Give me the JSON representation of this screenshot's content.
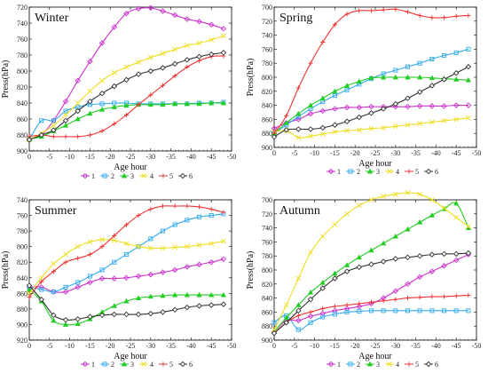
{
  "series_styles": [
    {
      "name": "1",
      "color": "#cc33cc",
      "marker": "diamond"
    },
    {
      "name": "2",
      "color": "#33aaee",
      "marker": "square"
    },
    {
      "name": "3",
      "color": "#22cc22",
      "marker": "triangle"
    },
    {
      "name": "4",
      "color": "#eedd22",
      "marker": "x"
    },
    {
      "name": "5",
      "color": "#ee3333",
      "marker": "plus"
    },
    {
      "name": "6",
      "color": "#333333",
      "marker": "diamond-open"
    }
  ],
  "chart_data": [
    {
      "type": "line",
      "title": "Winter",
      "xlabel": "Age hour",
      "ylabel": "Press(hPa)",
      "xlim": [
        0,
        -50
      ],
      "ylim": [
        900,
        720
      ],
      "xticks": [
        0,
        -5,
        -10,
        -15,
        -20,
        -25,
        -30,
        -35,
        -40,
        -45,
        -50
      ],
      "xtick_labels": [
        "0",
        "-5",
        "-10",
        "-15",
        "-20",
        "-25",
        "-30",
        "-35",
        "-40",
        "-45",
        "-50"
      ],
      "yticks": [
        720,
        740,
        760,
        780,
        800,
        820,
        840,
        860,
        880,
        900
      ],
      "ytick_labels": [
        "720",
        "740",
        "760",
        "780",
        "800",
        "820",
        "840",
        "860",
        "880",
        "900"
      ],
      "legend": "bottom",
      "grid": false,
      "x": [
        0,
        -3,
        -6,
        -9,
        -12,
        -15,
        -18,
        -21,
        -24,
        -27,
        -30,
        -33,
        -36,
        -39,
        -42,
        -45,
        -48
      ],
      "series": [
        {
          "name": "1",
          "values": [
            885,
            880,
            862,
            838,
            812,
            788,
            765,
            745,
            728,
            722,
            721,
            725,
            730,
            735,
            738,
            742,
            747
          ]
        },
        {
          "name": "2",
          "values": [
            886,
            862,
            862,
            850,
            845,
            842,
            841,
            840,
            840,
            841,
            841,
            841,
            841,
            841,
            840,
            840,
            839
          ]
        },
        {
          "name": "3",
          "values": [
            885,
            882,
            875,
            868,
            860,
            853,
            848,
            845,
            843,
            842,
            842,
            842,
            841,
            841,
            841,
            840,
            840
          ]
        },
        {
          "name": "4",
          "values": [
            886,
            878,
            868,
            855,
            840,
            825,
            812,
            802,
            795,
            789,
            783,
            778,
            773,
            768,
            765,
            761,
            756
          ]
        },
        {
          "name": "5",
          "values": [
            882,
            880,
            882,
            882,
            882,
            880,
            875,
            866,
            855,
            842,
            830,
            818,
            806,
            795,
            787,
            782,
            781
          ]
        },
        {
          "name": "6",
          "values": [
            886,
            880,
            874,
            862,
            850,
            838,
            828,
            819,
            811,
            804,
            800,
            796,
            791,
            786,
            782,
            779,
            777
          ]
        }
      ]
    },
    {
      "type": "line",
      "title": "Spring",
      "xlabel": "Age hour",
      "ylabel": "Press(hPa)",
      "xlim": [
        0,
        -50
      ],
      "ylim": [
        900,
        700
      ],
      "xticks": [
        0,
        -5,
        -10,
        -15,
        -20,
        -25,
        -30,
        -35,
        -40,
        -45,
        -50
      ],
      "xtick_labels": [
        "0",
        "-5",
        "-10",
        "-15",
        "-20",
        "-25",
        "-30",
        "-35",
        "-40",
        "-45",
        "-50"
      ],
      "yticks": [
        700,
        720,
        740,
        760,
        780,
        800,
        820,
        840,
        860,
        880,
        900
      ],
      "ytick_labels": [
        "700",
        "720",
        "740",
        "760",
        "780",
        "800",
        "820",
        "840",
        "860",
        "880",
        "900"
      ],
      "legend": "bottom",
      "grid": false,
      "x": [
        0,
        -3,
        -6,
        -9,
        -12,
        -15,
        -18,
        -21,
        -24,
        -27,
        -30,
        -33,
        -36,
        -39,
        -42,
        -45,
        -48
      ],
      "series": [
        {
          "name": "1",
          "values": [
            873,
            865,
            860,
            852,
            848,
            845,
            843,
            843,
            842,
            842,
            842,
            842,
            841,
            841,
            841,
            840,
            840
          ]
        },
        {
          "name": "2",
          "values": [
            880,
            868,
            856,
            845,
            835,
            826,
            818,
            810,
            802,
            795,
            790,
            785,
            780,
            774,
            769,
            765,
            760
          ]
        },
        {
          "name": "3",
          "values": [
            880,
            865,
            852,
            840,
            830,
            820,
            812,
            806,
            801,
            800,
            800,
            800,
            800,
            801,
            802,
            803,
            804
          ]
        },
        {
          "name": "4",
          "values": [
            878,
            876,
            886,
            884,
            881,
            878,
            876,
            875,
            873,
            872,
            870,
            868,
            866,
            864,
            862,
            860,
            858
          ]
        },
        {
          "name": "5",
          "values": [
            880,
            855,
            815,
            780,
            750,
            725,
            710,
            705,
            705,
            704,
            703,
            707,
            712,
            715,
            715,
            713,
            712
          ]
        },
        {
          "name": "6",
          "values": [
            885,
            875,
            874,
            874,
            872,
            868,
            863,
            857,
            851,
            845,
            838,
            830,
            821,
            812,
            803,
            794,
            785
          ]
        }
      ]
    },
    {
      "type": "line",
      "title": "Summer",
      "xlabel": "Age hour",
      "ylabel": "Press(hPa)",
      "xlim": [
        0,
        -50
      ],
      "ylim": [
        920,
        740
      ],
      "xticks": [
        0,
        -5,
        -10,
        -15,
        -20,
        -25,
        -30,
        -35,
        -40,
        -45,
        -50
      ],
      "xtick_labels": [
        "0",
        "-5",
        "-10",
        "-15",
        "-20",
        "-25",
        "-30",
        "-35",
        "-40",
        "-45",
        "-50"
      ],
      "yticks": [
        740,
        760,
        780,
        800,
        820,
        840,
        860,
        880,
        900,
        920
      ],
      "ytick_labels": [
        "740",
        "760",
        "780",
        "800",
        "820",
        "840",
        "860",
        "880",
        "900",
        "920"
      ],
      "legend": "bottom",
      "grid": false,
      "x": [
        0,
        -3,
        -6,
        -9,
        -12,
        -15,
        -18,
        -21,
        -24,
        -27,
        -30,
        -33,
        -36,
        -39,
        -42,
        -45,
        -48
      ],
      "series": [
        {
          "name": "1",
          "values": [
            852,
            852,
            858,
            858,
            852,
            846,
            841,
            841,
            840,
            838,
            836,
            833,
            830,
            826,
            823,
            820,
            816
          ]
        },
        {
          "name": "2",
          "values": [
            852,
            855,
            858,
            852,
            846,
            838,
            830,
            820,
            810,
            800,
            790,
            780,
            772,
            766,
            762,
            760,
            758
          ]
        },
        {
          "name": "3",
          "values": [
            855,
            870,
            895,
            900,
            899,
            893,
            884,
            876,
            870,
            866,
            864,
            863,
            862,
            862,
            862,
            862,
            862
          ]
        },
        {
          "name": "4",
          "values": [
            860,
            840,
            822,
            810,
            800,
            794,
            791,
            792,
            796,
            800,
            802,
            802,
            801,
            800,
            798,
            796,
            793
          ]
        },
        {
          "name": "5",
          "values": [
            865,
            845,
            832,
            820,
            815,
            810,
            800,
            786,
            772,
            760,
            752,
            748,
            748,
            748,
            749,
            752,
            756
          ]
        },
        {
          "name": "6",
          "values": [
            850,
            868,
            888,
            894,
            893,
            890,
            888,
            887,
            887,
            887,
            886,
            884,
            881,
            878,
            876,
            875,
            874
          ]
        }
      ]
    },
    {
      "type": "line",
      "title": "Autumn",
      "xlabel": "Age hour",
      "ylabel": "Press(hPa)",
      "xlim": [
        0,
        -50
      ],
      "ylim": [
        900,
        700
      ],
      "xticks": [
        0,
        -5,
        -10,
        -15,
        -20,
        -25,
        -30,
        -35,
        -40,
        -45,
        -50
      ],
      "xtick_labels": [
        "0",
        "-5",
        "-10",
        "-15",
        "-20",
        "-25",
        "-30",
        "-35",
        "-40",
        "-45",
        "-50"
      ],
      "yticks": [
        700,
        720,
        740,
        760,
        780,
        800,
        820,
        840,
        860,
        880,
        900
      ],
      "ytick_labels": [
        "700",
        "720",
        "740",
        "760",
        "780",
        "800",
        "820",
        "840",
        "860",
        "880",
        "900"
      ],
      "legend": "bottom",
      "grid": false,
      "x": [
        0,
        -3,
        -6,
        -9,
        -12,
        -15,
        -18,
        -21,
        -24,
        -27,
        -30,
        -33,
        -36,
        -39,
        -42,
        -45,
        -48
      ],
      "series": [
        {
          "name": "1",
          "values": [
            888,
            872,
            872,
            866,
            862,
            858,
            855,
            852,
            848,
            840,
            830,
            820,
            810,
            802,
            794,
            786,
            778
          ]
        },
        {
          "name": "2",
          "values": [
            875,
            865,
            885,
            875,
            867,
            863,
            860,
            859,
            858,
            858,
            858,
            858,
            858,
            858,
            858,
            858,
            858
          ]
        },
        {
          "name": "3",
          "values": [
            888,
            868,
            850,
            832,
            818,
            805,
            793,
            782,
            772,
            762,
            752,
            742,
            732,
            722,
            713,
            705,
            740
          ]
        },
        {
          "name": "4",
          "values": [
            885,
            850,
            812,
            775,
            752,
            735,
            720,
            708,
            700,
            695,
            692,
            690,
            692,
            700,
            712,
            725,
            738
          ]
        },
        {
          "name": "5",
          "values": [
            890,
            875,
            865,
            860,
            855,
            852,
            850,
            848,
            846,
            844,
            842,
            840,
            839,
            838,
            838,
            837,
            836
          ]
        },
        {
          "name": "6",
          "values": [
            890,
            875,
            858,
            842,
            826,
            812,
            802,
            796,
            792,
            788,
            784,
            782,
            780,
            778,
            777,
            777,
            776
          ]
        }
      ]
    }
  ]
}
